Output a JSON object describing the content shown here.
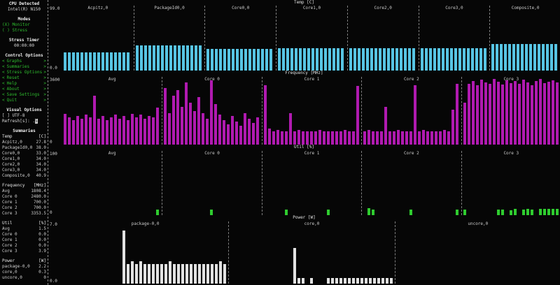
{
  "sidebar": {
    "cpu_detected_label": "CPU Detected",
    "cpu_name": "Intel(R) N150",
    "modes_label": "Modes",
    "modes": [
      {
        "text": "(X) Monitor"
      },
      {
        "text": "( ) Stress"
      }
    ],
    "stress_timer_label": "Stress Timer",
    "stress_timer_value": "00:00:00",
    "control_options_label": "Control Options",
    "menu_items": [
      "Graphs",
      "Summaries",
      "Stress Options",
      "Reset",
      "Help",
      "About",
      "Save Settings",
      "Quit"
    ],
    "visual_options_label": "Visual Options",
    "utf8_option": "[ ] UTF-8",
    "refresh_label": "Refresh[s]: .",
    "refresh_value": "5",
    "summaries_label": "Summaries",
    "summary_groups": [
      {
        "name": "Temp",
        "unit": "[C]",
        "rows": [
          [
            "Acpitz,0",
            "27.8"
          ],
          [
            "PackageId0,0",
            "38.0"
          ],
          [
            "Core0,0",
            "33.0"
          ],
          [
            "Core1,0",
            "34.0"
          ],
          [
            "Core2,0",
            "34.0"
          ],
          [
            "Core3,0",
            "34.0"
          ],
          [
            "Composite,0",
            "40.9"
          ]
        ]
      },
      {
        "name": "Frequency",
        "unit": "[MHz]",
        "rows": [
          [
            "Avg",
            "1808.4"
          ],
          [
            "Core 0",
            "2480.0"
          ],
          [
            "Core 1",
            "700.0"
          ],
          [
            "Core 2",
            "700.0"
          ],
          [
            "Core 3",
            "3353.5"
          ]
        ]
      },
      {
        "name": "Util",
        "unit": "[%]",
        "rows": [
          [
            "Avg",
            "1.5"
          ],
          [
            "Core 0",
            "0.0"
          ],
          [
            "Core 1",
            "0.0"
          ],
          [
            "Core 2",
            "0.0"
          ],
          [
            "Core 3",
            "3.9"
          ]
        ]
      },
      {
        "name": "Power",
        "unit": "[W]",
        "rows": [
          [
            "package-0,0",
            "2.2"
          ],
          [
            "core,0",
            "0.3"
          ],
          [
            "uncore,0",
            "0"
          ]
        ]
      }
    ]
  },
  "graphs": [
    {
      "type": "bar",
      "title": "Temp [C]",
      "color": "#57c4e3",
      "axis_top": "99.0",
      "axis_bottom": "0.0",
      "ymax": 99,
      "columns": [
        {
          "label": "Acpitz,0",
          "values": [
            27.8,
            27.8,
            27.8,
            27.8,
            27.8,
            27.8,
            27.8,
            27.8,
            27.8,
            27.8,
            27.8,
            27.8,
            27.8,
            27.8,
            27.8,
            27.8
          ]
        },
        {
          "label": "PackageId0,0",
          "values": [
            38,
            38,
            38,
            38,
            38,
            38,
            38,
            38,
            38,
            38,
            38,
            38,
            38,
            38,
            38,
            38
          ]
        },
        {
          "label": "Core0,0",
          "values": [
            33,
            33,
            33,
            33,
            33,
            33,
            33,
            33,
            33,
            33,
            33,
            33,
            33,
            33,
            33,
            33
          ]
        },
        {
          "label": "Core1,0",
          "values": [
            34,
            34,
            34,
            34,
            34,
            34,
            34,
            34,
            34,
            34,
            34,
            34,
            34,
            34,
            34,
            34
          ]
        },
        {
          "label": "Core2,0",
          "values": [
            34,
            34,
            34,
            34,
            34,
            34,
            34,
            34,
            34,
            34,
            34,
            34,
            34,
            34,
            34,
            34
          ]
        },
        {
          "label": "Core3,0",
          "values": [
            34,
            34,
            34,
            34,
            34,
            34,
            34,
            34,
            34,
            34,
            34,
            34,
            34,
            34,
            34,
            34
          ]
        },
        {
          "label": "Composite,0",
          "values": [
            40.9,
            40.9,
            40.9,
            40.9,
            40.9,
            40.9,
            40.9,
            40.9,
            40.9,
            40.9,
            40.9,
            40.9,
            40.9,
            40.9,
            40.9,
            40.9
          ]
        }
      ]
    },
    {
      "type": "bar",
      "title": "Frequency [MHz]",
      "color": "#b01ab0",
      "axis_top": "3600",
      "axis_bottom": "0",
      "ymax": 3600,
      "columns": [
        {
          "label": "Avg",
          "values": [
            1650,
            1440,
            1300,
            1510,
            1370,
            1580,
            1440,
            2590,
            1370,
            1510,
            1300,
            1440,
            1580,
            1370,
            1510,
            1300,
            1650,
            1440,
            1580,
            1370,
            1510,
            1440,
            1980
          ]
        },
        {
          "label": "Core 0",
          "values": [
            3020,
            1660,
            2590,
            2880,
            2020,
            3310,
            2230,
            1800,
            2520,
            1660,
            1370,
            3420,
            2160,
            1580,
            1300,
            1080,
            1510,
            1220,
            1010,
            1660,
            1370,
            1150,
            1440
          ]
        },
        {
          "label": "Core 1",
          "values": [
            3170,
            860,
            720,
            790,
            720,
            720,
            1660,
            720,
            790,
            720,
            720,
            720,
            720,
            790,
            720,
            720,
            720,
            720,
            720,
            790,
            720,
            720,
            3100
          ]
        },
        {
          "label": "Core 2",
          "values": [
            720,
            790,
            720,
            720,
            720,
            2020,
            720,
            720,
            790,
            720,
            720,
            720,
            3170,
            720,
            790,
            720,
            720,
            720,
            720,
            790,
            720,
            1870,
            3240
          ]
        },
        {
          "label": "Core 3",
          "values": [
            2230,
            3240,
            3380,
            3170,
            3460,
            3310,
            3240,
            3490,
            3350,
            3200,
            3420,
            3280,
            3380,
            3240,
            3460,
            3310,
            3170,
            3380,
            3490,
            3280,
            3350,
            3420,
            3310
          ]
        }
      ]
    },
    {
      "type": "bar",
      "title": "Util [%]",
      "color": "#2fcc2f",
      "axis_top": "100",
      "axis_bottom": "0",
      "ymax": 100,
      "columns": [
        {
          "label": "Avg",
          "values": [
            0,
            0,
            0,
            0,
            0,
            0,
            0,
            0,
            0,
            0,
            0,
            0,
            0,
            0,
            0,
            0,
            0,
            0,
            0,
            0,
            0,
            0,
            9
          ]
        },
        {
          "label": "Core 0",
          "values": [
            0,
            0,
            0,
            0,
            0,
            0,
            0,
            0,
            0,
            0,
            0,
            9,
            0,
            0,
            0,
            0,
            0,
            0,
            0,
            0,
            0,
            0,
            0
          ]
        },
        {
          "label": "Core 1",
          "values": [
            0,
            0,
            0,
            0,
            0,
            9,
            0,
            0,
            0,
            0,
            0,
            0,
            0,
            0,
            0,
            9,
            0,
            0,
            0,
            0,
            0,
            0,
            0
          ]
        },
        {
          "label": "Core 2",
          "values": [
            0,
            11,
            9,
            0,
            0,
            0,
            0,
            0,
            0,
            0,
            0,
            9,
            0,
            0,
            0,
            0,
            0,
            0,
            0,
            0,
            0,
            0,
            9
          ]
        },
        {
          "label": "Core 3",
          "values": [
            9,
            0,
            0,
            0,
            0,
            0,
            0,
            0,
            9,
            9,
            0,
            8,
            10,
            0,
            9,
            10,
            9,
            0,
            10,
            10,
            10,
            10,
            10
          ]
        }
      ]
    },
    {
      "type": "bar",
      "title": "Power [W]",
      "color": "#e2e2e2",
      "axis_top": "7.0",
      "axis_bottom": "0.0",
      "ymax": 7,
      "columns": [
        {
          "label": "package-0,0",
          "values": [
            0,
            0,
            0,
            0,
            0,
            0,
            0,
            0,
            0,
            0,
            0,
            0,
            0,
            0,
            6.0,
            2.2,
            2.5,
            2.2,
            2.5,
            2.2,
            2.2,
            2.2,
            2.2,
            2.2,
            2.2,
            2.5,
            2.2,
            2.2,
            2.2,
            2.2,
            2.2,
            2.2,
            2.2,
            2.2,
            2.2,
            2.2,
            2.2,
            2.5,
            2.2
          ]
        },
        {
          "label": "core,0",
          "values": [
            0,
            0,
            0,
            0,
            0,
            0,
            0,
            0,
            0,
            0,
            0,
            0,
            0,
            0,
            0,
            4.0,
            0.6,
            0.6,
            0,
            0.6,
            0,
            0,
            0,
            0.6,
            0.6,
            0.6,
            0.6,
            0.6,
            0.6,
            0.6,
            0.6,
            0.6,
            0.6,
            0.6,
            0.6,
            0.6,
            0.6,
            0.6,
            0.6
          ]
        },
        {
          "label": "uncore,0",
          "values": []
        }
      ]
    }
  ]
}
